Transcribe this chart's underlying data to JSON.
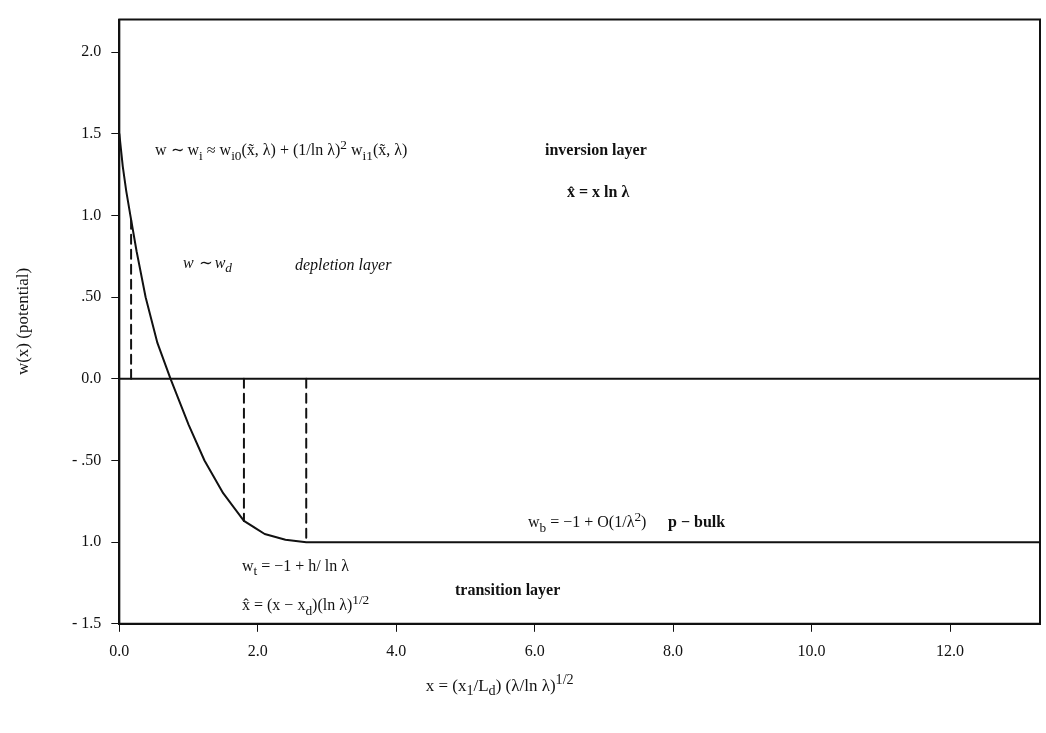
{
  "chart_data": {
    "type": "line",
    "xlabel": "x = (x$_{1}$/L$_{d}$) (λ/ln λ)$^{1/2}$",
    "ylabel": "w(x) (potential)",
    "xlim": [
      0,
      13.3
    ],
    "xticks": [
      {
        "value": 0,
        "label": "0.0"
      },
      {
        "value": 2,
        "label": "2.0"
      },
      {
        "value": 4,
        "label": "4.0"
      },
      {
        "value": 6,
        "label": "6.0"
      },
      {
        "value": 8,
        "label": "8.0"
      },
      {
        "value": 10,
        "label": "10.0"
      },
      {
        "value": 12,
        "label": "12.0"
      }
    ],
    "ylim": [
      -1.5,
      2.2
    ],
    "yticks": [
      {
        "value": -1.5,
        "label": "- 1.5"
      },
      {
        "value": -1,
        "label": "1.0"
      },
      {
        "value": -0.5,
        "label": "- .50"
      },
      {
        "value": 0,
        "label": "0.0"
      },
      {
        "value": 0.5,
        "label": ".50"
      },
      {
        "value": 1,
        "label": "1.0"
      },
      {
        "value": 1.5,
        "label": "1.5"
      },
      {
        "value": 2,
        "label": "2.0"
      }
    ],
    "grid": false,
    "legend": false,
    "marker": "none",
    "series": [
      {
        "color": "#111111",
        "line_style": "solid",
        "x": [
          0,
          0.05,
          0.1,
          0.16,
          0.25,
          0.38,
          0.55,
          0.74,
          1.0,
          1.23,
          1.5,
          1.8,
          2.1,
          2.4,
          2.7,
          13.3
        ],
        "values": [
          1.5,
          1.3,
          1.15,
          1.0,
          0.78,
          0.5,
          0.22,
          0,
          -0.28,
          -0.5,
          -0.7,
          -0.87,
          -0.95,
          -0.985,
          -1.0,
          -1.0
        ]
      },
      {
        "color": "#111111",
        "line_style": "dashed",
        "x": [
          0.17,
          0.17
        ],
        "values": [
          0,
          1.0
        ]
      },
      {
        "color": "#111111",
        "line_style": "dashed",
        "x": [
          1.8,
          1.8
        ],
        "values": [
          0,
          -0.87
        ]
      },
      {
        "color": "#111111",
        "line_style": "dashed",
        "x": [
          2.7,
          2.7
        ],
        "values": [
          0,
          -1.0
        ]
      }
    ],
    "ref_lines": [
      {
        "axis": "y",
        "value": 0,
        "color": "#111111",
        "line_style": "solid"
      }
    ],
    "annotations": [
      "w ∼ w$_{i}$ ≈ w$_{i0}$(x̃, λ) + (1/ln λ)$^{2}$ w$_{i1}$(x̃, λ)",
      "inversion layer",
      "x̂ = x ln λ",
      "w ∼ w$_{d}$",
      "depletion layer",
      "w$_{b}$ = −1 + O(1/λ$^{2}$)",
      "p − bulk",
      "w$_{t}$ = −1 + h/ ln λ",
      "transition layer",
      "x̂ = (x − x$_{d}$)(ln λ)$^{1/2}$"
    ]
  }
}
